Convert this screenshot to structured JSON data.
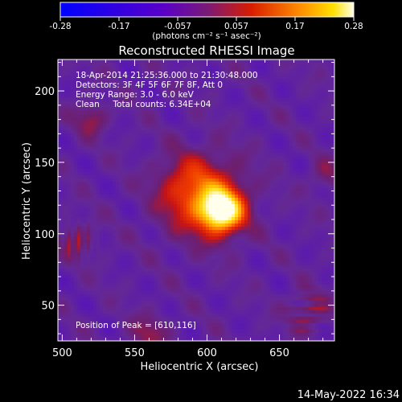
{
  "chart_data": {
    "type": "heatmap",
    "title": "Reconstructed RHESSI Image",
    "xlabel": "Heliocentric X (arcsec)",
    "ylabel": "Heliocentric Y (arcsec)",
    "xlim": [
      497,
      688
    ],
    "ylim": [
      25,
      222
    ],
    "xticks": [
      500,
      550,
      600,
      650
    ],
    "yticks": [
      50,
      100,
      150,
      200
    ],
    "colorbar": {
      "range": [
        -0.28,
        0.28
      ],
      "ticks": [
        "-0.28",
        "-0.17",
        "-0.057",
        "0.057",
        "0.17",
        "0.28"
      ],
      "units": "(photons cm⁻² s⁻¹ asec⁻²)"
    },
    "peak": {
      "x": 610,
      "y": 116
    },
    "annotations": [
      "18-Apr-2014 21:25:36.000 to 21:30:48.000",
      "Detectors: 3F 4F 5F 6F 7F 8F, Att 0",
      "Energy Range: 3.0 - 6.0 keV",
      "Clean     Total counts: 6.34E+04"
    ],
    "peak_label": "Position of Peak = [610,116]"
  },
  "footer": {
    "timestamp": "14-May-2022 16:34"
  }
}
